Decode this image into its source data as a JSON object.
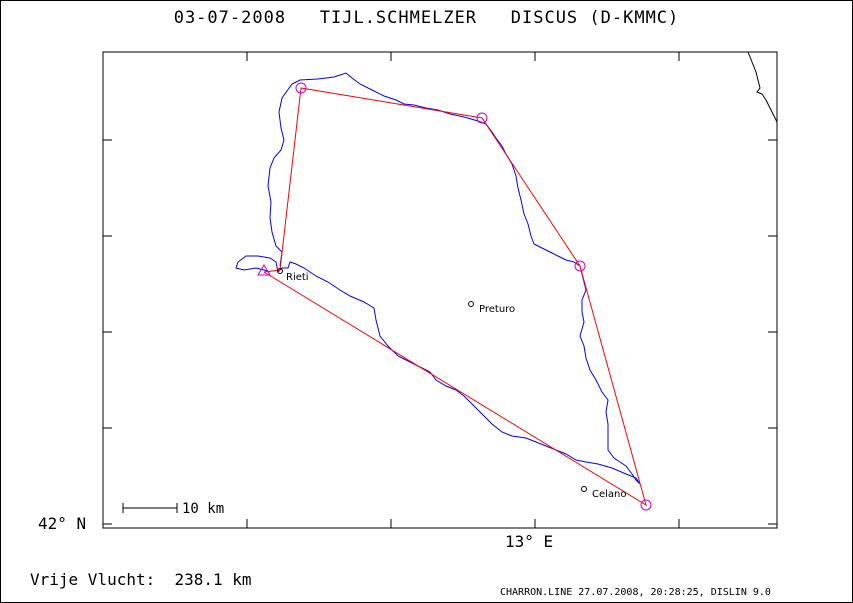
{
  "header": {
    "title": "03-07-2008   TIJL.SCHMELZER   DISCUS (D-KMMC)"
  },
  "axes": {
    "lat_label": "42° N",
    "lon_label": "13° E"
  },
  "map": {
    "cities": [
      {
        "id": "rieti",
        "name": "Rieti"
      },
      {
        "id": "preturo",
        "name": "Preturo"
      },
      {
        "id": "celano",
        "name": "Celano"
      }
    ],
    "scale_bar_label": "10 km",
    "colors": {
      "track": "#0000ff",
      "task": "#ff0000",
      "turnpoint": "#cc00cc",
      "frame": "#000000"
    }
  },
  "summary": {
    "distance_text": "Vrije Vlucht:  238.1 km"
  },
  "footer": {
    "software_text": "CHARRON.LINE 27.07.2008, 20:28:25, DISLIN 9.0"
  }
}
